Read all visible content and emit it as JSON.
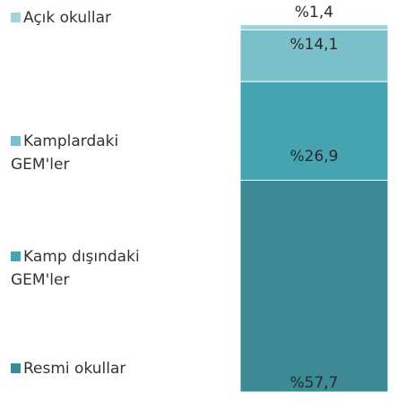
{
  "chart_data": {
    "type": "bar",
    "stacked": true,
    "categories": [
      null
    ],
    "series": [
      {
        "name": "Açık okullar",
        "color": "#a6d1d9",
        "values": [
          1.4
        ],
        "value_labels": [
          "%1,4"
        ]
      },
      {
        "name": "Kamplardaki GEM'ler",
        "color": "#7bbfcb",
        "values": [
          14.1
        ],
        "value_labels": [
          "%14,1"
        ]
      },
      {
        "name": "Kamp dışındaki GEM'ler",
        "color": "#45a3b2",
        "values": [
          26.9
        ],
        "value_labels": [
          "%26,9"
        ]
      },
      {
        "name": "Resmi okullar",
        "color": "#3b8a94",
        "values": [
          57.7
        ],
        "value_labels": [
          "%57,7"
        ]
      }
    ],
    "ylim": [
      0,
      100
    ]
  }
}
